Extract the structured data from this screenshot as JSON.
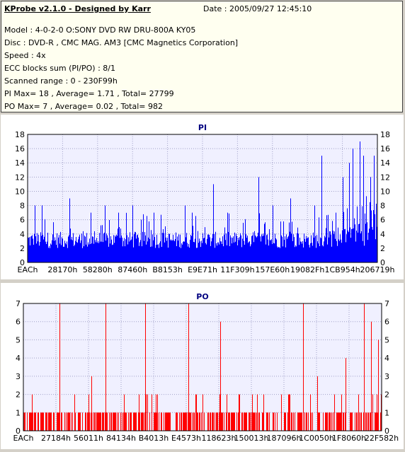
{
  "info": {
    "title": "KProbe v2.1.0 - Designed by Karr",
    "date": "Date : 2005/09/27 12:45:10",
    "lines": [
      "Model : 4-0-2-0 O:SONY    DVD RW DRU-800A  KY05",
      "Disc : DVD-R , CMC MAG. AM3 [CMC Magnetics Corporation]",
      "Speed : 4x",
      "ECC blocks sum (PI/PO) : 8/1",
      "Scanned range : 0 - 230F99h",
      "PI Max= 18 , Average= 1.71 , Total= 27799",
      "PO Max= 7 , Average= 0.02 , Total= 982"
    ]
  },
  "chart_data": [
    {
      "type": "bar",
      "title": "PI",
      "color": "#0000ff",
      "ylim": [
        0,
        18
      ],
      "yticks": [
        0,
        2,
        4,
        6,
        8,
        10,
        12,
        14,
        16,
        18
      ],
      "xlabels": [
        "EACh",
        "28170h",
        "58280h",
        "87460h",
        "B8153h",
        "E9E71h",
        "11F309h",
        "157E60h",
        "19082Fh",
        "1CB954h",
        "206719h"
      ],
      "grid": true,
      "average": 1.71,
      "max": 18,
      "spikes": [
        [
          0.02,
          8
        ],
        [
          0.04,
          8
        ],
        [
          0.12,
          9
        ],
        [
          0.18,
          7
        ],
        [
          0.22,
          8
        ],
        [
          0.26,
          7
        ],
        [
          0.3,
          8
        ],
        [
          0.36,
          7
        ],
        [
          0.45,
          8
        ],
        [
          0.47,
          7
        ],
        [
          0.53,
          11
        ],
        [
          0.57,
          7
        ],
        [
          0.66,
          12
        ],
        [
          0.7,
          8
        ],
        [
          0.75,
          9
        ],
        [
          0.82,
          8
        ],
        [
          0.84,
          15
        ],
        [
          0.88,
          7
        ],
        [
          0.9,
          12
        ],
        [
          0.92,
          14
        ],
        [
          0.93,
          16
        ],
        [
          0.95,
          17
        ],
        [
          0.96,
          15
        ],
        [
          0.98,
          12
        ],
        [
          0.99,
          15
        ]
      ]
    },
    {
      "type": "bar",
      "title": "PO",
      "color": "#ff0000",
      "ylim": [
        0,
        7
      ],
      "yticks": [
        0,
        1,
        2,
        3,
        4,
        5,
        6,
        7
      ],
      "xlabels": [
        "EACh",
        "27184h",
        "56011h",
        "84134h",
        "B4013h",
        "E4573h",
        "118623h",
        "150013h",
        "187096h",
        "1C0050h",
        "1F8060h",
        "22F582h"
      ],
      "grid": true,
      "average": 0.02,
      "max": 7,
      "spikes": [
        [
          0.1,
          7
        ],
        [
          0.19,
          3
        ],
        [
          0.23,
          7
        ],
        [
          0.34,
          7
        ],
        [
          0.46,
          7
        ],
        [
          0.55,
          6
        ],
        [
          0.78,
          7
        ],
        [
          0.82,
          3
        ],
        [
          0.9,
          4
        ],
        [
          0.95,
          7
        ],
        [
          0.97,
          6
        ],
        [
          0.99,
          5
        ]
      ]
    }
  ]
}
